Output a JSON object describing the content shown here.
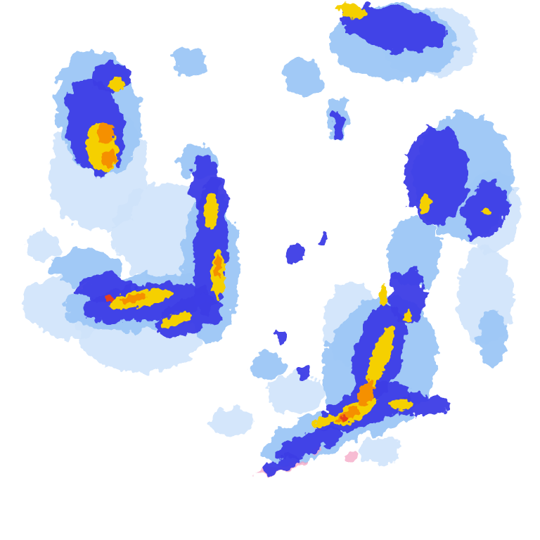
{
  "radar": {
    "background": "#ffffff",
    "color_scale": {
      "very_light": "#cfe3fb",
      "light": "#9cc6f5",
      "medium": "#6f8cf0",
      "strong": "#3c3ce6",
      "heavy": "#f5d000",
      "intense": "#f59000",
      "extreme": "#e8401c",
      "mixed": "#f4a0c0"
    }
  }
}
